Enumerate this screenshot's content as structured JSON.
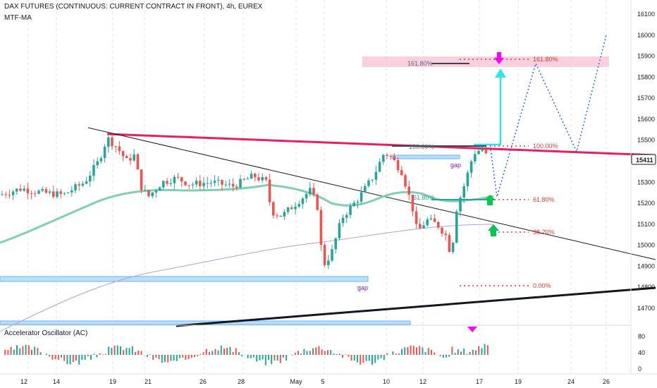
{
  "header": {
    "title": "DAX FUTURES (CONTINUOUS: CURRENT CONTRACT IN FRONT), 4h, EUREX",
    "indicator": "MTF-MA",
    "oscillator": "Accelerator Oscillator (AC)"
  },
  "price_axis": {
    "ticks": [
      "16100",
      "16000",
      "15900",
      "15800",
      "15700",
      "15600",
      "15500",
      "15300",
      "15200",
      "15100",
      "15000",
      "14900",
      "14800",
      "14700"
    ],
    "current_price": "15411"
  },
  "time_axis": {
    "ticks": [
      "12",
      "14",
      "19",
      "21",
      "26",
      "28",
      "May",
      "5",
      "10",
      "12",
      "17",
      "19",
      "24",
      "26"
    ]
  },
  "osc_axis": {
    "ticks": [
      "80",
      "40",
      "0"
    ]
  },
  "annotations": {
    "fib_top": [
      "161.80%",
      "100.00%",
      "61.80%",
      "38.20%",
      "0.00%"
    ],
    "fib_inner_top": "161.80%",
    "fib_inner_mid": "100.00%",
    "fib_inner_low": "61.80%",
    "gap_top": "gap",
    "gap_bottom": "gap"
  },
  "colors": {
    "bull": "#26a69a",
    "bear": "#ef5350",
    "ma_green": "#7fcfb5",
    "ma_purple": "#b39ddb",
    "resistance": "#e91e63",
    "support": "#131722",
    "arrow_cyan": "#33e0f0",
    "projection": "#2962ff",
    "zone": "#f8bbd0",
    "gap_box": "#90caf9",
    "magenta": "#ff00ff",
    "green_arrow": "#00c853"
  },
  "chart_data": {
    "type": "candlestick",
    "title": "DAX FUTURES (CONTINUOUS: CURRENT CONTRACT IN FRONT), 4h, EUREX",
    "ylim": [
      14620,
      16140
    ],
    "series_summary": [
      {
        "date": "12",
        "close": 15250
      },
      {
        "date": "14",
        "close": 15280
      },
      {
        "date": "19",
        "close": 15500
      },
      {
        "date": "21",
        "close": 15280
      },
      {
        "date": "26",
        "close": 15270
      },
      {
        "date": "28",
        "close": 15300
      },
      {
        "date": "May",
        "close": 15200
      },
      {
        "date": "5",
        "close": 14890
      },
      {
        "date": "10",
        "close": 15440
      },
      {
        "date": "12",
        "close": 15100
      },
      {
        "date": "17",
        "close": 15411
      }
    ],
    "fib_levels": [
      {
        "label": "161.80%",
        "price": 15880
      },
      {
        "label": "100.00%",
        "price": 15470
      },
      {
        "label": "61.80%",
        "price": 15220
      },
      {
        "label": "38.20%",
        "price": 15060
      },
      {
        "label": "0.00%",
        "price": 14800
      }
    ],
    "oscillator": {
      "name": "Accelerator Oscillator (AC)",
      "ylim": [
        -20,
        110
      ]
    }
  }
}
